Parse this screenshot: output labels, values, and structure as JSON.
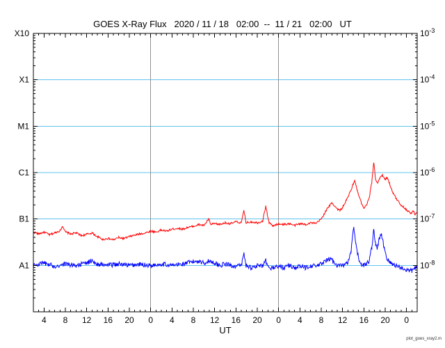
{
  "chart_data": {
    "type": "line",
    "title": "GOES X-Ray Flux   2020 / 11 / 18   02:00  --  11 / 21   02:00   UT",
    "xlabel": "UT",
    "watermark": "plot_goes_xray2.m",
    "x_range_hours": [
      0,
      72
    ],
    "y_log_range": [
      -9,
      -3
    ],
    "y_unit": "W/m^2 (log10 flux)",
    "grid": "horizontal cyan lines at each flux decade, vertical gray lines at day boundaries",
    "left_axis_labels": [
      {
        "label": "X10",
        "log": -3
      },
      {
        "label": "X1",
        "log": -4
      },
      {
        "label": "M1",
        "log": -5
      },
      {
        "label": "C1",
        "log": -6
      },
      {
        "label": "B1",
        "log": -7
      },
      {
        "label": "A1",
        "log": -8
      }
    ],
    "right_axis_labels": [
      {
        "base": "10",
        "exp": "-3",
        "log": -3
      },
      {
        "base": "10",
        "exp": "-4",
        "log": -4
      },
      {
        "base": "10",
        "exp": "-5",
        "log": -5
      },
      {
        "base": "10",
        "exp": "-6",
        "log": -6
      },
      {
        "base": "10",
        "exp": "-7",
        "log": -7
      },
      {
        "base": "10",
        "exp": "-8",
        "log": -8
      }
    ],
    "x_ticks": [
      [
        2,
        "4"
      ],
      [
        6,
        "8"
      ],
      [
        10,
        "12"
      ],
      [
        14,
        "16"
      ],
      [
        18,
        "20"
      ],
      [
        22,
        "0"
      ],
      [
        26,
        "4"
      ],
      [
        30,
        "8"
      ],
      [
        34,
        "12"
      ],
      [
        38,
        "16"
      ],
      [
        42,
        "20"
      ],
      [
        46,
        "0"
      ],
      [
        50,
        "4"
      ],
      [
        54,
        "8"
      ],
      [
        58,
        "12"
      ],
      [
        62,
        "16"
      ],
      [
        66,
        "20"
      ],
      [
        70,
        "0"
      ]
    ],
    "x_minor_tick_hours": 1,
    "day_boundaries_hours": [
      22,
      46
    ],
    "colors": {
      "grid": "#5fc4ee",
      "day_line": "#909090",
      "axis": "#000000",
      "background": "#ffffff",
      "red_series": "#ff0000",
      "blue_series": "#0000ff"
    },
    "series": [
      {
        "name": "xray-flux-red-line",
        "color": "#ff0000",
        "noise": 0.022,
        "seed": 17,
        "points": [
          [
            0,
            -7.28
          ],
          [
            1,
            -7.32
          ],
          [
            2,
            -7.28
          ],
          [
            3,
            -7.34
          ],
          [
            4,
            -7.3
          ],
          [
            5,
            -7.25
          ],
          [
            5.5,
            -7.15
          ],
          [
            6,
            -7.28
          ],
          [
            7,
            -7.32
          ],
          [
            8,
            -7.3
          ],
          [
            9,
            -7.36
          ],
          [
            10,
            -7.33
          ],
          [
            11,
            -7.3
          ],
          [
            12,
            -7.38
          ],
          [
            13,
            -7.44
          ],
          [
            14,
            -7.42
          ],
          [
            15,
            -7.45
          ],
          [
            16,
            -7.4
          ],
          [
            17,
            -7.42
          ],
          [
            18,
            -7.38
          ],
          [
            19,
            -7.35
          ],
          [
            20,
            -7.32
          ],
          [
            21,
            -7.3
          ],
          [
            22,
            -7.26
          ],
          [
            23,
            -7.28
          ],
          [
            24,
            -7.24
          ],
          [
            25,
            -7.26
          ],
          [
            26,
            -7.22
          ],
          [
            27,
            -7.2
          ],
          [
            28,
            -7.22
          ],
          [
            29,
            -7.18
          ],
          [
            30,
            -7.16
          ],
          [
            31,
            -7.12
          ],
          [
            32,
            -7.14
          ],
          [
            32.9,
            -7.0
          ],
          [
            33.3,
            -7.12
          ],
          [
            34,
            -7.1
          ],
          [
            35,
            -7.12
          ],
          [
            36,
            -7.08
          ],
          [
            37,
            -7.1
          ],
          [
            38,
            -7.06
          ],
          [
            39,
            -7.08
          ],
          [
            39.5,
            -6.82
          ],
          [
            39.9,
            -7.08
          ],
          [
            41,
            -7.06
          ],
          [
            42,
            -7.08
          ],
          [
            43,
            -7.05
          ],
          [
            43.6,
            -6.72
          ],
          [
            44.2,
            -7.08
          ],
          [
            45,
            -7.15
          ],
          [
            46,
            -7.1
          ],
          [
            47,
            -7.12
          ],
          [
            48,
            -7.1
          ],
          [
            49,
            -7.14
          ],
          [
            50,
            -7.1
          ],
          [
            51,
            -7.12
          ],
          [
            52,
            -7.08
          ],
          [
            53,
            -7.1
          ],
          [
            54,
            -7.0
          ],
          [
            55,
            -6.8
          ],
          [
            56,
            -6.65
          ],
          [
            57,
            -6.78
          ],
          [
            57.5,
            -6.82
          ],
          [
            58,
            -6.75
          ],
          [
            58.7,
            -6.6
          ],
          [
            59.3,
            -6.45
          ],
          [
            60,
            -6.25
          ],
          [
            60.3,
            -6.18
          ],
          [
            60.8,
            -6.4
          ],
          [
            61.5,
            -6.65
          ],
          [
            62,
            -6.78
          ],
          [
            62.5,
            -6.7
          ],
          [
            63,
            -6.55
          ],
          [
            63.5,
            -6.2
          ],
          [
            63.85,
            -5.77
          ],
          [
            64.2,
            -6.15
          ],
          [
            64.6,
            -6.22
          ],
          [
            65,
            -6.12
          ],
          [
            65.5,
            -6.05
          ],
          [
            66,
            -6.15
          ],
          [
            66.4,
            -6.1
          ],
          [
            67,
            -6.3
          ],
          [
            67.5,
            -6.45
          ],
          [
            68,
            -6.55
          ],
          [
            69,
            -6.7
          ],
          [
            70,
            -6.8
          ],
          [
            70.8,
            -6.88
          ],
          [
            71.3,
            -6.83
          ],
          [
            71.6,
            -6.9
          ],
          [
            72,
            -6.85
          ]
        ]
      },
      {
        "name": "xray-flux-blue-line",
        "color": "#0000ff",
        "noise": 0.05,
        "seed": 91,
        "points": [
          [
            0,
            -8.0
          ],
          [
            2,
            -7.95
          ],
          [
            4,
            -8.02
          ],
          [
            6,
            -7.97
          ],
          [
            8,
            -8.0
          ],
          [
            10,
            -7.95
          ],
          [
            11,
            -7.9
          ],
          [
            12,
            -7.97
          ],
          [
            14,
            -8.0
          ],
          [
            16,
            -7.97
          ],
          [
            18,
            -8.0
          ],
          [
            20,
            -7.98
          ],
          [
            22,
            -8.0
          ],
          [
            24,
            -7.97
          ],
          [
            26,
            -8.0
          ],
          [
            28,
            -7.97
          ],
          [
            30,
            -7.92
          ],
          [
            31,
            -7.9
          ],
          [
            32,
            -7.95
          ],
          [
            33,
            -7.9
          ],
          [
            34,
            -7.95
          ],
          [
            35,
            -8.0
          ],
          [
            36,
            -7.97
          ],
          [
            37,
            -8.0
          ],
          [
            38,
            -8.02
          ],
          [
            39,
            -8.0
          ],
          [
            39.5,
            -7.75
          ],
          [
            39.9,
            -8.0
          ],
          [
            41,
            -8.05
          ],
          [
            42,
            -8.0
          ],
          [
            43,
            -8.02
          ],
          [
            43.6,
            -7.9
          ],
          [
            44,
            -8.05
          ],
          [
            45,
            -8.05
          ],
          [
            46,
            -8.02
          ],
          [
            47,
            -8.05
          ],
          [
            48,
            -8.0
          ],
          [
            49,
            -8.05
          ],
          [
            50,
            -8.02
          ],
          [
            51,
            -8.05
          ],
          [
            52,
            -8.0
          ],
          [
            53,
            -8.02
          ],
          [
            54,
            -7.97
          ],
          [
            55,
            -7.9
          ],
          [
            55.7,
            -7.85
          ],
          [
            56.5,
            -7.95
          ],
          [
            57,
            -8.0
          ],
          [
            58,
            -8.0
          ],
          [
            59,
            -7.95
          ],
          [
            59.6,
            -7.7
          ],
          [
            60.1,
            -7.18
          ],
          [
            60.5,
            -7.55
          ],
          [
            61,
            -7.85
          ],
          [
            61.5,
            -7.97
          ],
          [
            62,
            -8.0
          ],
          [
            62.5,
            -7.97
          ],
          [
            63,
            -7.9
          ],
          [
            63.5,
            -7.6
          ],
          [
            63.85,
            -7.22
          ],
          [
            64.2,
            -7.55
          ],
          [
            64.5,
            -7.65
          ],
          [
            64.9,
            -7.4
          ],
          [
            65.3,
            -7.35
          ],
          [
            65.8,
            -7.6
          ],
          [
            66.3,
            -7.85
          ],
          [
            67,
            -7.95
          ],
          [
            68,
            -8.0
          ],
          [
            69,
            -8.05
          ],
          [
            70,
            -8.1
          ],
          [
            71,
            -8.12
          ],
          [
            71.5,
            -8.05
          ],
          [
            72,
            -8.05
          ]
        ]
      }
    ]
  }
}
